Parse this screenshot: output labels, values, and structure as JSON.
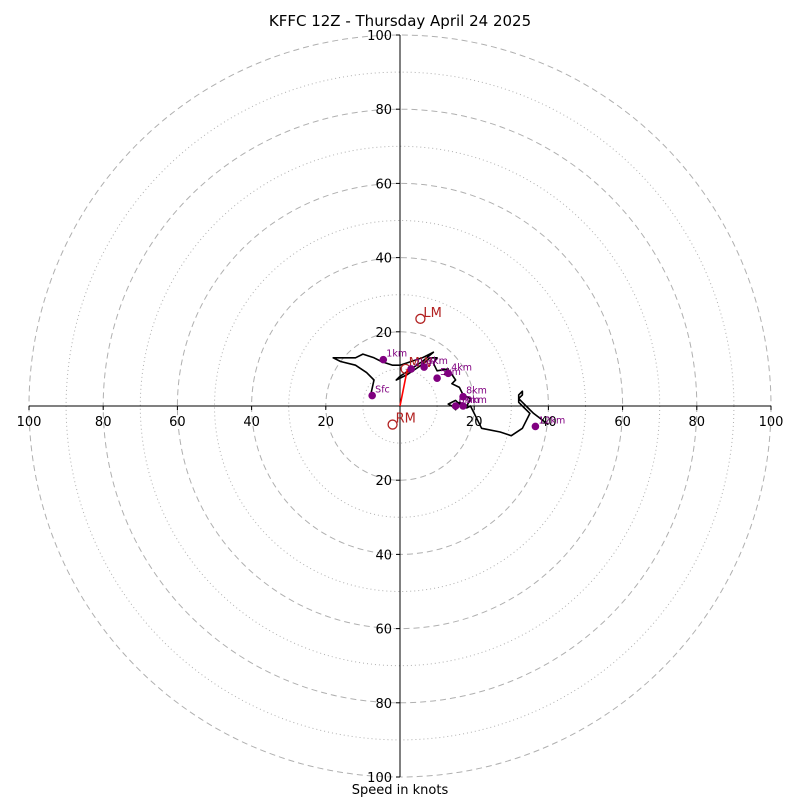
{
  "chart_data": {
    "type": "hodograph",
    "title": "KFFC 12Z - Thursday April 24 2025",
    "xlabel": "Speed in knots",
    "axis_range": [
      -100,
      100
    ],
    "ring_labels": [
      20,
      40,
      60,
      80,
      100
    ],
    "axis_tick_values": [
      20,
      40,
      60,
      80,
      100
    ],
    "grid": {
      "major_ring_step": 20,
      "minor_ring_step": 10,
      "color": "#b0b0b0"
    },
    "hodograph_trace": [
      [
        -8,
        2.5
      ],
      [
        -7,
        7
      ],
      [
        -9,
        9
      ],
      [
        -12,
        11
      ],
      [
        -16,
        12
      ],
      [
        -18,
        13
      ],
      [
        -12,
        13
      ],
      [
        -10,
        14
      ],
      [
        -7,
        13
      ],
      [
        -5,
        12
      ],
      [
        -2,
        11
      ],
      [
        0,
        11
      ],
      [
        3,
        12
      ],
      [
        6,
        13
      ],
      [
        8,
        14
      ],
      [
        9,
        14.5
      ],
      [
        6,
        12
      ],
      [
        3,
        10
      ],
      [
        0,
        8
      ],
      [
        -1,
        7
      ],
      [
        2,
        8.5
      ],
      [
        5,
        10.5
      ],
      [
        7,
        12
      ],
      [
        8,
        13
      ],
      [
        10,
        13
      ],
      [
        9,
        11.5
      ],
      [
        10,
        9.5
      ],
      [
        13,
        10
      ],
      [
        12,
        8.5
      ],
      [
        14,
        8.5
      ],
      [
        15,
        7
      ],
      [
        14,
        6
      ],
      [
        16,
        5
      ],
      [
        17,
        3
      ],
      [
        19,
        2
      ],
      [
        18,
        0
      ],
      [
        16,
        1
      ],
      [
        15,
        -1
      ],
      [
        14,
        0
      ],
      [
        13,
        0.5
      ],
      [
        15,
        1.5
      ],
      [
        16,
        0.5
      ],
      [
        18,
        -0.5
      ],
      [
        19,
        0
      ],
      [
        20,
        -2
      ],
      [
        21,
        -4
      ],
      [
        22,
        -6
      ],
      [
        27,
        -7
      ],
      [
        30,
        -8
      ],
      [
        33,
        -6
      ],
      [
        35,
        -2
      ],
      [
        33,
        0
      ],
      [
        32,
        1
      ],
      [
        32,
        3
      ],
      [
        33,
        4
      ],
      [
        33,
        3
      ],
      [
        32,
        2
      ],
      [
        33,
        1
      ],
      [
        34,
        0
      ],
      [
        36,
        -2
      ],
      [
        40,
        -5
      ]
    ],
    "height_markers": [
      {
        "label": "Sfc",
        "u": -7.5,
        "v": 2.8
      },
      {
        "label": "1km",
        "u": -4.5,
        "v": 12.5
      },
      {
        "label": "2km",
        "u": 3,
        "v": 10
      },
      {
        "label": "3km",
        "u": 6.5,
        "v": 10.5
      },
      {
        "label": "4km",
        "u": 13,
        "v": 8.8
      },
      {
        "label": "5km",
        "u": 10,
        "v": 7.5
      },
      {
        "label": "8km",
        "u": 17,
        "v": 2.5
      },
      {
        "label": "9km",
        "u": 17,
        "v": 0
      },
      {
        "label": "6km",
        "u": 15,
        "v": 0
      },
      {
        "label": "12km",
        "u": 36.5,
        "v": -5.5
      }
    ],
    "marker_color": "#800080",
    "trace_color": "#000000",
    "storm_motions": [
      {
        "label": "LM",
        "u": 5.5,
        "v": 23.5
      },
      {
        "label": "RM",
        "u": -2,
        "v": -5
      },
      {
        "label": "MW",
        "u": 1.5,
        "v": 10
      }
    ],
    "storm_motion_color": "#b22222",
    "shear_vector": {
      "from": [
        0,
        0
      ],
      "to": [
        2,
        10
      ],
      "color": "#ff0000"
    }
  }
}
